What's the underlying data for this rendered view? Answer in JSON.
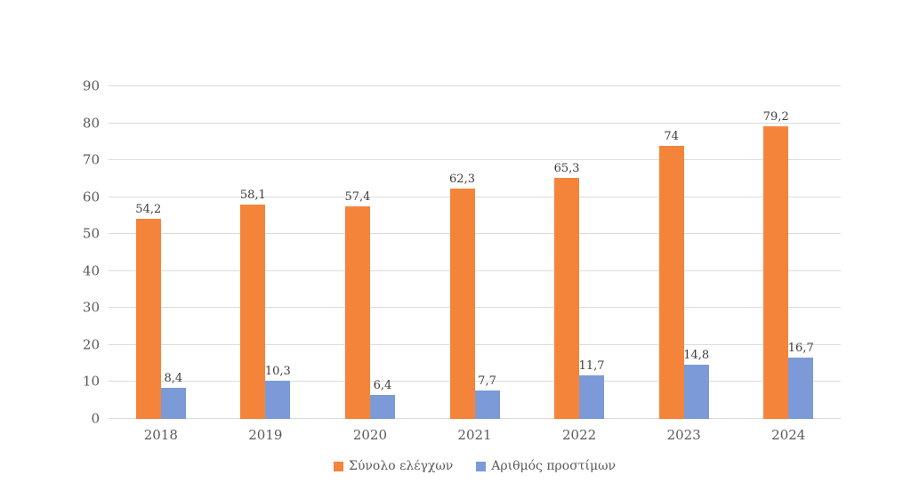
{
  "chart_data": {
    "type": "bar",
    "title": "",
    "categories": [
      "2018",
      "2019",
      "2020",
      "2021",
      "2022",
      "2023",
      "2024"
    ],
    "series": [
      {
        "name": "Σύνολο ελέγχων",
        "color": "#f5843b",
        "values": [
          54.2,
          58.1,
          57.4,
          62.3,
          65.3,
          74,
          79.2
        ],
        "labels": [
          "54,2",
          "58,1",
          "57,4",
          "62,3",
          "65,3",
          "74",
          "79,2"
        ]
      },
      {
        "name": "Αριθμός προστίμων",
        "color": "#7b9ad7",
        "values": [
          8.4,
          10.3,
          6.4,
          7.7,
          11.7,
          14.8,
          16.7
        ],
        "labels": [
          "8,4",
          "10,3",
          "6,4",
          "7,7",
          "11,7",
          "14,8",
          "16,7"
        ]
      }
    ],
    "ylim": [
      0,
      90
    ],
    "yticks": [
      0,
      10,
      20,
      30,
      40,
      50,
      60,
      70,
      80,
      90
    ],
    "grid": "horizontal",
    "gridline_color": "#dcdcdc",
    "legend_position": "bottom",
    "axis_tick_color": "#5a5a5a",
    "data_label_color": "#3d3d3d",
    "background_color": "#ffffff"
  }
}
